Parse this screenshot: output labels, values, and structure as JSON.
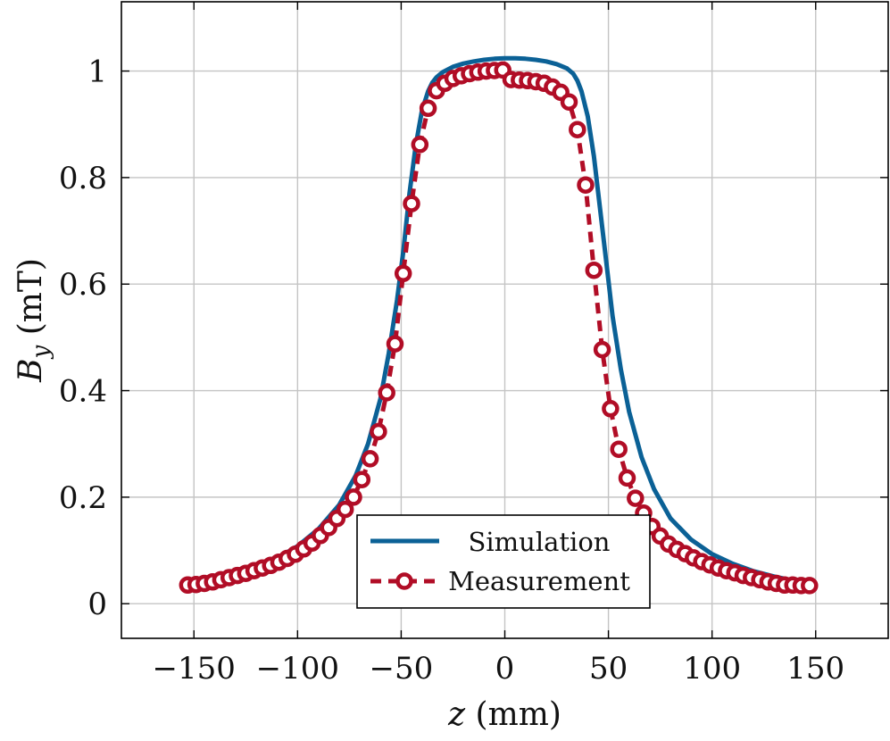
{
  "chart_data": {
    "type": "line",
    "title": "",
    "xlabel": {
      "var": "z",
      "unit": " (mm)"
    },
    "ylabel": {
      "var": "B",
      "sub": "y",
      "unit": " (mT)"
    },
    "xlim": [
      -185,
      185
    ],
    "ylim": [
      -0.065,
      1.13
    ],
    "xticks": [
      -150,
      -100,
      -50,
      0,
      50,
      100,
      150
    ],
    "xtick_labels": [
      "−150",
      "−100",
      "−50",
      "0",
      "50",
      "100",
      "150"
    ],
    "yticks": [
      0,
      0.2,
      0.4,
      0.6,
      0.8,
      1
    ],
    "ytick_labels": [
      "0",
      "0.2",
      "0.4",
      "0.6",
      "0.8",
      "1"
    ],
    "grid": true,
    "legend_position": "bottom-center",
    "series": [
      {
        "name": "Simulation",
        "style": "solid",
        "color": "#0b6196",
        "x": [
          -153,
          -140,
          -130,
          -120,
          -110,
          -100,
          -90,
          -80,
          -72,
          -66,
          -60,
          -56,
          -52,
          -49,
          -46,
          -43,
          -40,
          -37,
          -35,
          -33,
          -30,
          -25,
          -20,
          -15,
          -10,
          -5,
          0,
          5,
          10,
          15,
          20,
          25,
          30,
          33,
          35,
          37,
          40,
          43,
          46,
          49,
          52,
          56,
          60,
          66,
          72,
          80,
          90,
          100,
          110,
          120,
          130,
          140,
          148
        ],
        "y": [
          0.036,
          0.045,
          0.055,
          0.068,
          0.085,
          0.108,
          0.14,
          0.185,
          0.24,
          0.3,
          0.385,
          0.47,
          0.57,
          0.66,
          0.77,
          0.86,
          0.925,
          0.962,
          0.978,
          0.988,
          0.998,
          1.008,
          1.014,
          1.018,
          1.021,
          1.023,
          1.024,
          1.024,
          1.023,
          1.021,
          1.018,
          1.013,
          1.005,
          0.995,
          0.982,
          0.962,
          0.915,
          0.84,
          0.74,
          0.64,
          0.54,
          0.44,
          0.36,
          0.275,
          0.215,
          0.16,
          0.12,
          0.093,
          0.075,
          0.061,
          0.051,
          0.043,
          0.037
        ]
      },
      {
        "name": "Measurement",
        "style": "dashed-circle-markers",
        "color": "#b10d26",
        "x": [
          -153,
          -149,
          -145,
          -141,
          -137,
          -133,
          -129,
          -125,
          -121,
          -117,
          -113,
          -109,
          -105,
          -101,
          -97,
          -93,
          -89,
          -85,
          -81,
          -77,
          -73,
          -69,
          -65,
          -61,
          -57,
          -53,
          -49,
          -45,
          -41,
          -37,
          -33,
          -29,
          -25,
          -21,
          -17,
          -13,
          -9,
          -5,
          -1,
          3,
          7,
          11,
          15,
          19,
          23,
          27,
          31,
          35,
          39,
          43,
          47,
          51,
          55,
          59,
          63,
          67,
          71,
          75,
          79,
          83,
          87,
          91,
          95,
          99,
          103,
          107,
          111,
          115,
          119,
          123,
          127,
          131,
          135,
          139,
          143,
          147
        ],
        "y": [
          0.035,
          0.036,
          0.038,
          0.041,
          0.045,
          0.049,
          0.053,
          0.057,
          0.062,
          0.067,
          0.072,
          0.078,
          0.085,
          0.093,
          0.103,
          0.114,
          0.128,
          0.143,
          0.16,
          0.177,
          0.2,
          0.233,
          0.272,
          0.323,
          0.396,
          0.488,
          0.62,
          0.751,
          0.862,
          0.93,
          0.963,
          0.977,
          0.986,
          0.991,
          0.995,
          0.998,
          1.0,
          1.001,
          1.002,
          0.984,
          0.983,
          0.982,
          0.98,
          0.977,
          0.97,
          0.96,
          0.942,
          0.89,
          0.786,
          0.626,
          0.477,
          0.366,
          0.29,
          0.236,
          0.198,
          0.17,
          0.145,
          0.127,
          0.112,
          0.102,
          0.094,
          0.086,
          0.079,
          0.073,
          0.067,
          0.062,
          0.058,
          0.053,
          0.049,
          0.045,
          0.041,
          0.038,
          0.035,
          0.035,
          0.034,
          0.034
        ]
      }
    ]
  }
}
